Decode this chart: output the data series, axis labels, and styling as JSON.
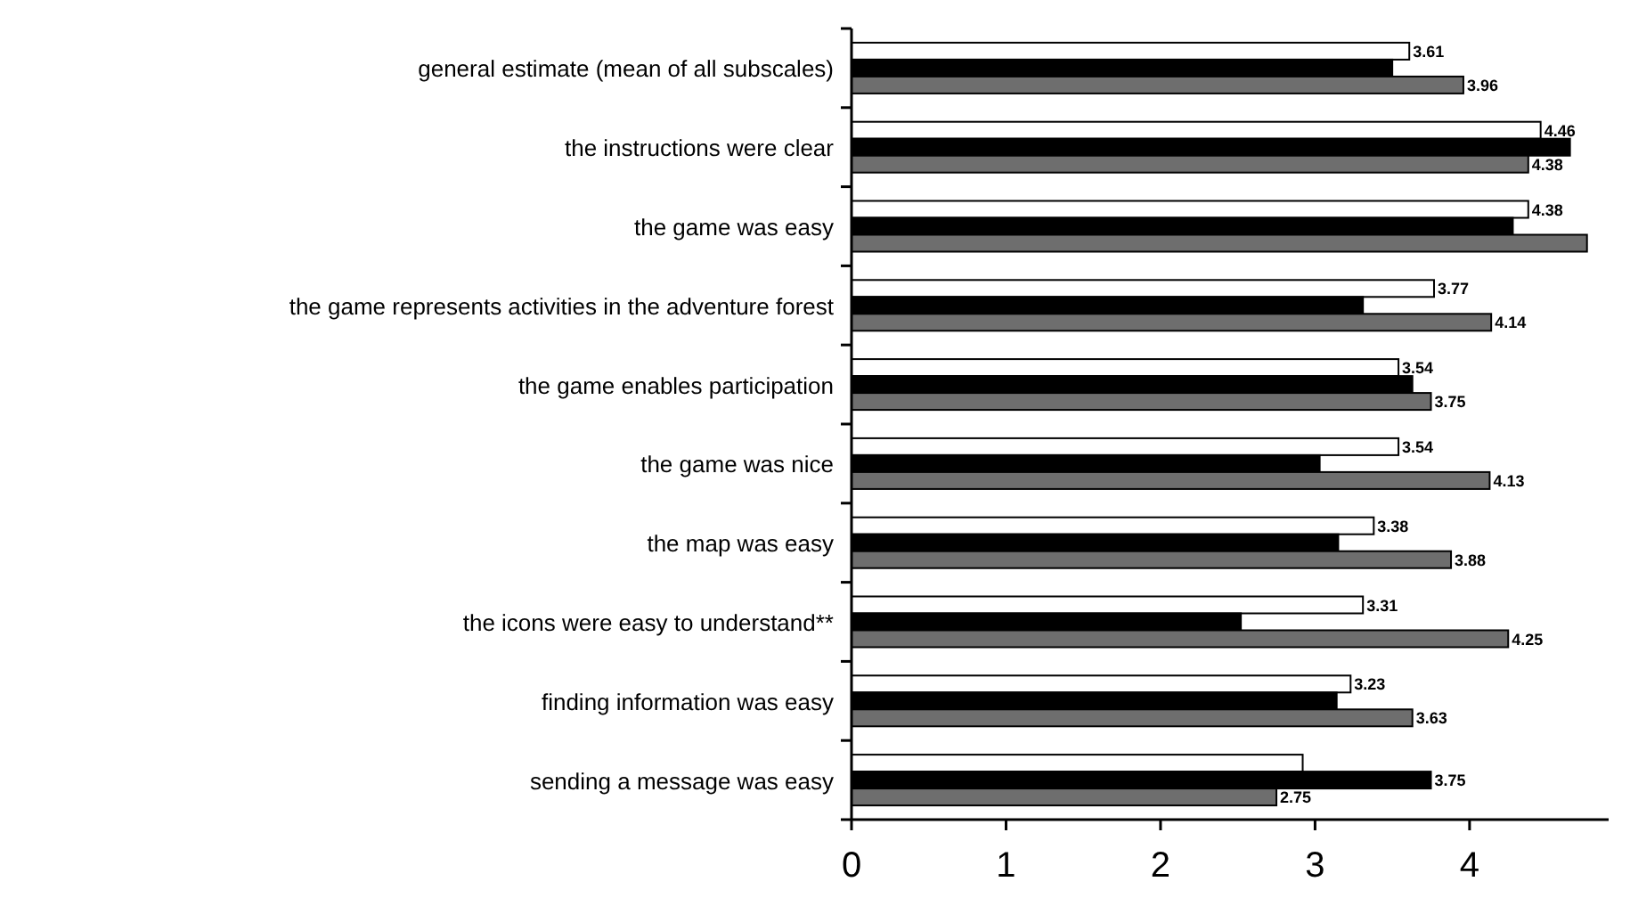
{
  "chart_data": {
    "type": "bar",
    "orientation": "horizontal",
    "categories": [
      "general estimate (mean of all subscales)",
      "the instructions were clear",
      "the game was easy",
      "the game represents activities in the adventure forest",
      "the game enables participation",
      "the game was nice",
      "the map was easy",
      "the icons were easy to understand**",
      "finding information was easy",
      "sending a message was easy"
    ],
    "series": [
      {
        "color": "#ffffff",
        "values": [
          3.61,
          4.46,
          4.38,
          3.77,
          3.54,
          3.54,
          3.38,
          3.31,
          3.23,
          2.92
        ],
        "value_labels": [
          "3.61",
          "4.46",
          "4.38",
          "3.77",
          "3.54",
          "3.54",
          "3.38",
          "3.31",
          "3.23",
          null
        ]
      },
      {
        "color": "#000000",
        "values": [
          3.5,
          4.65,
          4.28,
          3.31,
          3.63,
          3.03,
          3.15,
          2.52,
          3.14,
          3.75
        ],
        "value_labels": [
          null,
          null,
          null,
          null,
          null,
          null,
          null,
          null,
          null,
          "3.75"
        ]
      },
      {
        "color": "#6e6e6e",
        "values": [
          3.96,
          4.38,
          4.76,
          4.14,
          3.75,
          4.13,
          3.88,
          4.25,
          3.63,
          2.75
        ],
        "value_labels": [
          "3.96",
          "4.38",
          null,
          "4.14",
          "3.75",
          "4.13",
          "3.88",
          "4.25",
          "3.63",
          "2.75"
        ]
      }
    ],
    "xlim": [
      0,
      4.9
    ],
    "xticks": [
      0,
      1,
      2,
      3,
      4
    ],
    "grid": false
  }
}
